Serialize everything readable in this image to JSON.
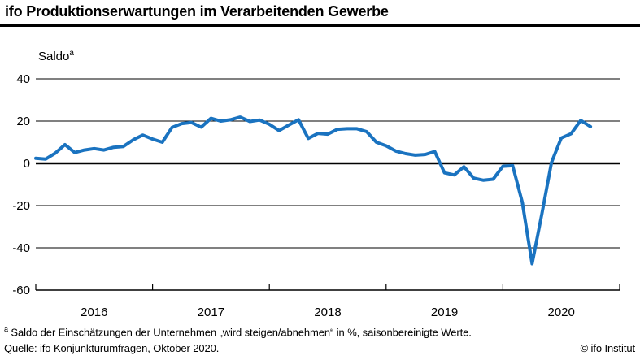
{
  "header": {
    "title": "ifo Produktionserwartungen im Verarbeitenden Gewerbe"
  },
  "chart_data": {
    "type": "line",
    "title": "ifo Produktionserwartungen im Verarbeitenden Gewerbe",
    "ylabel": "Saldo",
    "ylabel_superscript": "a",
    "grid": "horizontal",
    "legend_position": "none",
    "line_color": "#1a73c0",
    "ylim": [
      -60,
      40
    ],
    "y_ticks": [
      40,
      20,
      0,
      -20,
      -40,
      -60
    ],
    "x_axis_years": [
      "2016",
      "2017",
      "2018",
      "2019",
      "2020"
    ],
    "x_range": "2016-01 to 2020-10, monthly",
    "series": [
      {
        "name": "Produktionserwartungen (Saldo, saisonbereinigt)",
        "months": [
          "2016-01",
          "2016-02",
          "2016-03",
          "2016-04",
          "2016-05",
          "2016-06",
          "2016-07",
          "2016-08",
          "2016-09",
          "2016-10",
          "2016-11",
          "2016-12",
          "2017-01",
          "2017-02",
          "2017-03",
          "2017-04",
          "2017-05",
          "2017-06",
          "2017-07",
          "2017-08",
          "2017-09",
          "2017-10",
          "2017-11",
          "2017-12",
          "2018-01",
          "2018-02",
          "2018-03",
          "2018-04",
          "2018-05",
          "2018-06",
          "2018-07",
          "2018-08",
          "2018-09",
          "2018-10",
          "2018-11",
          "2018-12",
          "2019-01",
          "2019-02",
          "2019-03",
          "2019-04",
          "2019-05",
          "2019-06",
          "2019-07",
          "2019-08",
          "2019-09",
          "2019-10",
          "2019-11",
          "2019-12",
          "2020-01",
          "2020-02",
          "2020-03",
          "2020-04",
          "2020-05",
          "2020-06",
          "2020-07",
          "2020-08",
          "2020-09",
          "2020-10"
        ],
        "values": [
          2.4,
          2.0,
          4.8,
          8.9,
          5.1,
          6.3,
          7.0,
          6.3,
          7.6,
          8.0,
          11.1,
          13.4,
          11.5,
          10.0,
          17.0,
          18.8,
          19.3,
          17.1,
          21.3,
          20.0,
          20.6,
          21.9,
          19.8,
          20.5,
          18.5,
          15.5,
          18.1,
          20.6,
          11.8,
          14.2,
          13.8,
          16.1,
          16.4,
          16.4,
          15.0,
          10.0,
          8.3,
          5.8,
          4.6,
          3.9,
          4.2,
          5.6,
          -4.5,
          -5.5,
          -1.6,
          -7.0,
          -8.0,
          -7.5,
          -1.4,
          -1.1,
          -18.5,
          -47.5,
          -24.0,
          0.5,
          12.0,
          14.0,
          20.3,
          17.4
        ]
      }
    ]
  },
  "footnotes": {
    "marker": "a",
    "note": " Saldo der Einschätzungen der Unternehmen „wird steigen/abnehmen“ in %, saisonbereinigte Werte.",
    "source": "Quelle: ifo Konjunkturumfragen, Oktober 2020.",
    "copyright": "© ifo Institut"
  },
  "colors": {
    "line": "#1a73c0",
    "axis": "#000000",
    "background": "#ffffff"
  }
}
